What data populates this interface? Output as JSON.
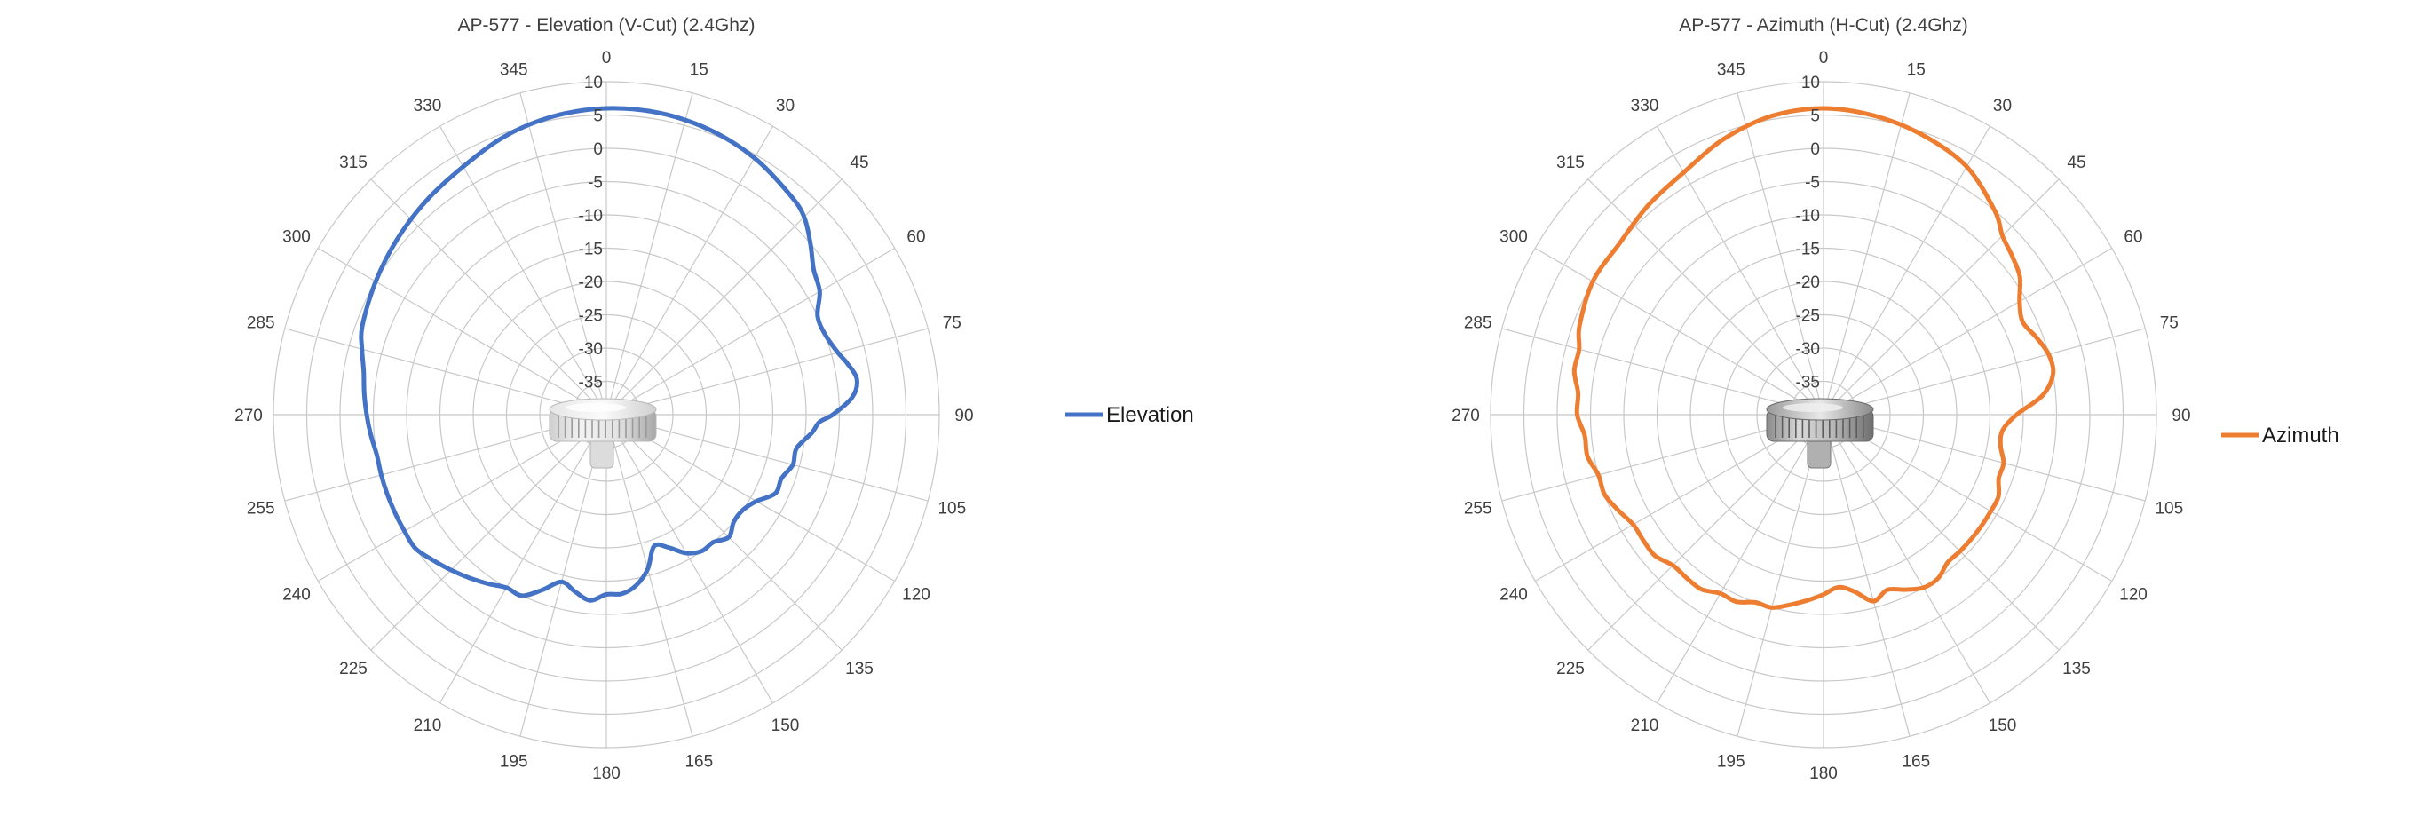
{
  "chart_data": [
    {
      "type": "polar",
      "title": "AP-577 - Elevation (V-Cut) (2.4Ghz)",
      "angle_ticks": [
        "0",
        "15",
        "30",
        "45",
        "60",
        "75",
        "90",
        "105",
        "120",
        "135",
        "150",
        "165",
        "180",
        "195",
        "210",
        "225",
        "240",
        "255",
        "270",
        "285",
        "300",
        "315",
        "330",
        "345"
      ],
      "radial_ticks": [
        "10",
        "5",
        "0",
        "-5",
        "-10",
        "-15",
        "-20",
        "-25",
        "-30",
        "-35"
      ],
      "rlim": [
        -40,
        10
      ],
      "grid": true,
      "legend": "right",
      "device_image": "access-point-photo",
      "series": [
        {
          "name": "Elevation",
          "color": "#4472C4",
          "theta": [
            0,
            10,
            20,
            30,
            40,
            45,
            50,
            55,
            60,
            65,
            70,
            75,
            78,
            82,
            86,
            90,
            92,
            95,
            100,
            105,
            110,
            115,
            120,
            125,
            130,
            135,
            140,
            145,
            150,
            155,
            160,
            165,
            170,
            175,
            180,
            185,
            190,
            195,
            200,
            205,
            210,
            215,
            220,
            225,
            230,
            235,
            240,
            245,
            250,
            255,
            260,
            265,
            270,
            275,
            280,
            285,
            290,
            300,
            310,
            320,
            330,
            340,
            350
          ],
          "r": [
            6,
            6,
            5.5,
            4.5,
            3,
            2,
            0,
            -2,
            -3,
            -5,
            -5,
            -4,
            -3,
            -2,
            -3,
            -6,
            -8,
            -9,
            -11,
            -11,
            -12,
            -12,
            -14,
            -15,
            -15,
            -14,
            -15,
            -15,
            -16,
            -18,
            -19,
            -16,
            -14,
            -13,
            -13,
            -12,
            -13,
            -14,
            -12,
            -10,
            -10,
            -9,
            -8,
            -7,
            -6,
            -5,
            -5,
            -5,
            -5,
            -5,
            -5,
            -4.5,
            -4,
            -3.5,
            -3,
            -2,
            -1,
            0,
            1,
            2,
            3,
            4.5,
            5.5
          ]
        }
      ]
    },
    {
      "type": "polar",
      "title": "AP-577 - Azimuth (H-Cut) (2.4Ghz)",
      "angle_ticks": [
        "0",
        "15",
        "30",
        "45",
        "60",
        "75",
        "90",
        "105",
        "120",
        "135",
        "150",
        "165",
        "180",
        "195",
        "210",
        "225",
        "240",
        "255",
        "270",
        "285",
        "300",
        "315",
        "330",
        "345"
      ],
      "radial_ticks": [
        "10",
        "5",
        "0",
        "-5",
        "-10",
        "-15",
        "-20",
        "-25",
        "-30",
        "-35"
      ],
      "rlim": [
        -40,
        10
      ],
      "grid": true,
      "legend": "right",
      "device_image": "access-point-photo",
      "series": [
        {
          "name": "Azimuth",
          "color": "#ED7D31",
          "theta": [
            0,
            10,
            20,
            30,
            40,
            45,
            50,
            55,
            60,
            65,
            70,
            75,
            80,
            85,
            90,
            95,
            100,
            105,
            110,
            115,
            120,
            125,
            130,
            135,
            140,
            145,
            150,
            155,
            160,
            165,
            170,
            175,
            180,
            185,
            190,
            195,
            200,
            205,
            210,
            215,
            220,
            225,
            230,
            235,
            240,
            245,
            250,
            255,
            260,
            265,
            270,
            275,
            280,
            285,
            290,
            300,
            310,
            320,
            330,
            340,
            350
          ],
          "r": [
            6,
            5.5,
            4.5,
            3,
            0,
            -2,
            -3,
            -4,
            -6,
            -7,
            -6,
            -5,
            -5,
            -7,
            -11,
            -13,
            -13,
            -12,
            -12,
            -11,
            -11,
            -11,
            -11,
            -11,
            -11,
            -10,
            -10,
            -11,
            -12,
            -11,
            -13,
            -14,
            -13,
            -12,
            -11,
            -10,
            -10,
            -9,
            -9,
            -8,
            -8,
            -8,
            -7,
            -7,
            -7,
            -6,
            -5,
            -5,
            -4,
            -4,
            -3,
            -3,
            -2,
            -2,
            -1,
            0,
            0,
            1,
            2,
            4,
            5.5
          ]
        }
      ]
    }
  ]
}
